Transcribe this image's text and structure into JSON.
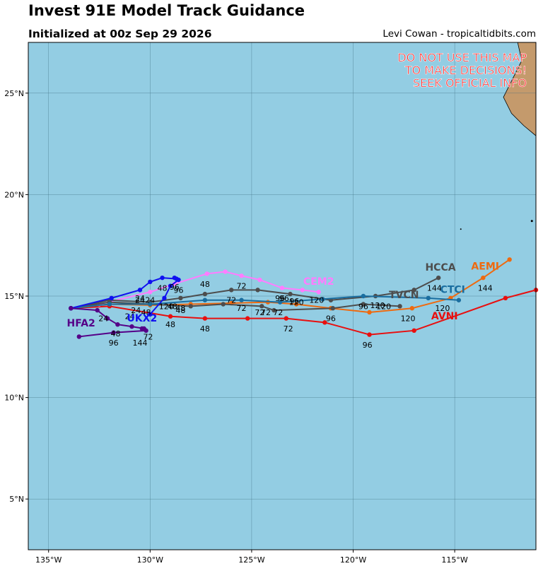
{
  "header": {
    "title": "Invest 91E Model Track Guidance",
    "initialized": "Initialized at 00z Sep 29 2026",
    "credit": "Levi Cowan - tropicaltidbits.com"
  },
  "warning": [
    "DO NOT USE THIS MAP",
    "TO MAKE DECISIONS!",
    "SEEK OFFICIAL INFO"
  ],
  "colors": {
    "ocean": "#93cde3",
    "land": "#c49a6c",
    "grid": "#3f6f80",
    "warning": "#ff1a1a"
  },
  "map_extent": {
    "lon": [
      -136,
      -111
    ],
    "lat": [
      2.5,
      27.5
    ]
  },
  "axes": {
    "lon_ticks": [
      {
        "value": -135,
        "label": "135°W"
      },
      {
        "value": -130,
        "label": "130°W"
      },
      {
        "value": -125,
        "label": "125°W"
      },
      {
        "value": -120,
        "label": "120°W"
      },
      {
        "value": -115,
        "label": "115°W"
      }
    ],
    "lat_ticks": [
      {
        "value": 25,
        "label": "25°N"
      },
      {
        "value": 20,
        "label": "20°N"
      },
      {
        "value": 15,
        "label": "15°N"
      },
      {
        "value": 10,
        "label": "10°N"
      },
      {
        "value": 5,
        "label": "5°N"
      }
    ]
  },
  "models": [
    {
      "name": "AVNI",
      "color": "#e80f0f",
      "label": {
        "text": "AVNI",
        "lon": -115.5,
        "lat": 13.85
      },
      "track": [
        [
          -133.9,
          14.4
        ],
        [
          -132,
          14.5
        ],
        [
          -129,
          14.0
        ],
        [
          -127.3,
          13.9
        ],
        [
          -125.2,
          13.9
        ],
        [
          -123.3,
          13.9
        ],
        [
          -121.4,
          13.7
        ],
        [
          -119.2,
          13.1
        ],
        [
          -117.0,
          13.3
        ],
        [
          -112.5,
          14.9
        ],
        [
          -111.0,
          15.3
        ]
      ],
      "hours": [
        {
          "t": "24",
          "lon": -132.3,
          "lat": 13.9
        },
        {
          "t": "48",
          "lon": -129.0,
          "lat": 13.6
        },
        {
          "t": "48",
          "lon": -127.3,
          "lat": 13.4
        },
        {
          "t": "72",
          "lon": -123.2,
          "lat": 13.4
        },
        {
          "t": "96",
          "lon": -119.3,
          "lat": 12.6
        }
      ]
    },
    {
      "name": "AEMI",
      "color": "#ee6a10",
      "label": {
        "text": "AEMI",
        "lon": -113.5,
        "lat": 16.3
      },
      "track": [
        [
          -133.9,
          14.4
        ],
        [
          -132,
          14.6
        ],
        [
          -130,
          14.55
        ],
        [
          -128,
          14.6
        ],
        [
          -126,
          14.65
        ],
        [
          -124.2,
          14.7
        ],
        [
          -122.8,
          14.6
        ],
        [
          -121.1,
          14.4
        ],
        [
          -119.2,
          14.2
        ],
        [
          -117.1,
          14.4
        ],
        [
          -115.2,
          14.9
        ],
        [
          -113.6,
          15.9
        ],
        [
          -112.3,
          16.8
        ]
      ],
      "hours": [
        {
          "t": "72",
          "lon": -123.7,
          "lat": 14.2
        },
        {
          "t": "96",
          "lon": -121.1,
          "lat": 13.9
        },
        {
          "t": "120",
          "lon": -117.3,
          "lat": 13.9
        },
        {
          "t": "120",
          "lon": -115.6,
          "lat": 14.4
        },
        {
          "t": "144",
          "lon": -113.5,
          "lat": 15.4
        }
      ]
    },
    {
      "name": "CEM2",
      "color": "#ff7cff",
      "label": {
        "text": "CEM2",
        "lon": -121.7,
        "lat": 15.55
      },
      "track": [
        [
          -133.9,
          14.4
        ],
        [
          -132.5,
          14.6
        ],
        [
          -130.0,
          15.2
        ],
        [
          -128.8,
          15.6
        ],
        [
          -127.2,
          16.1
        ],
        [
          -126.3,
          16.2
        ],
        [
          -125.5,
          16.0
        ],
        [
          -124.6,
          15.8
        ],
        [
          -123.5,
          15.4
        ],
        [
          -122.5,
          15.3
        ],
        [
          -121.7,
          15.2
        ]
      ],
      "hours": [
        {
          "t": "24",
          "lon": -130.5,
          "lat": 14.8
        },
        {
          "t": "48",
          "lon": -127.3,
          "lat": 15.6
        },
        {
          "t": "72",
          "lon": -125.5,
          "lat": 15.5
        },
        {
          "t": "96",
          "lon": -123.4,
          "lat": 14.9
        }
      ]
    },
    {
      "name": "HCCA",
      "color": "#4d4d4d",
      "label": {
        "text": "HCCA",
        "lon": -115.7,
        "lat": 16.25
      },
      "track": [
        [
          -133.9,
          14.4
        ],
        [
          -132,
          14.8
        ],
        [
          -130,
          14.7
        ],
        [
          -128.5,
          14.9
        ],
        [
          -127.3,
          15.1
        ],
        [
          -126,
          15.3
        ],
        [
          -124.7,
          15.3
        ],
        [
          -123.1,
          15.1
        ],
        [
          -121.1,
          14.8
        ],
        [
          -118.9,
          15.0
        ],
        [
          -117.0,
          15.3
        ],
        [
          -115.8,
          15.9
        ]
      ],
      "hours": [
        {
          "t": "48",
          "lon": -128.5,
          "lat": 14.4
        },
        {
          "t": "72",
          "lon": -125.5,
          "lat": 14.4
        },
        {
          "t": "96",
          "lon": -123.6,
          "lat": 14.9
        },
        {
          "t": "120",
          "lon": -118.5,
          "lat": 14.5
        },
        {
          "t": "144",
          "lon": -116.0,
          "lat": 15.4
        }
      ]
    },
    {
      "name": "TVCN",
      "color": "#4d4d4d",
      "label": {
        "text": "TVCN",
        "lon": -117.5,
        "lat": 14.9
      },
      "track": [
        [
          -133.9,
          14.4
        ],
        [
          -132,
          14.7
        ],
        [
          -130,
          14.6
        ],
        [
          -128,
          14.5
        ],
        [
          -126.4,
          14.6
        ],
        [
          -124.5,
          14.5
        ],
        [
          -123.9,
          14.3
        ],
        [
          -121.0,
          14.4
        ],
        [
          -119.5,
          14.6
        ],
        [
          -117.7,
          14.5
        ]
      ],
      "hours": [
        {
          "t": "48",
          "lon": -128.5,
          "lat": 14.3
        },
        {
          "t": "72",
          "lon": -124.3,
          "lat": 14.2
        },
        {
          "t": "96",
          "lon": -119.5,
          "lat": 14.5
        }
      ]
    },
    {
      "name": "CTCI",
      "color": "#1a6ea0",
      "label": {
        "text": "CTCI",
        "lon": -115.1,
        "lat": 15.15
      },
      "track": [
        [
          -133.9,
          14.4
        ],
        [
          -132,
          14.6
        ],
        [
          -130,
          14.6
        ],
        [
          -127.3,
          14.8
        ],
        [
          -125.5,
          14.8
        ],
        [
          -123.6,
          14.7
        ],
        [
          -121.5,
          14.85
        ],
        [
          -119.5,
          15.0
        ],
        [
          -116.3,
          14.9
        ],
        [
          -114.8,
          14.8
        ]
      ],
      "hours": [
        {
          "t": "72",
          "lon": -126.0,
          "lat": 14.8
        },
        {
          "t": "96",
          "lon": -122.9,
          "lat": 14.75
        },
        {
          "t": "120",
          "lon": -122.8,
          "lat": 14.7
        }
      ]
    },
    {
      "name": "UKX2",
      "color": "#1010f0",
      "label": {
        "text": "UKX2",
        "lon": -130.4,
        "lat": 13.75
      },
      "track": [
        [
          -133.9,
          14.4
        ],
        [
          -131.9,
          14.9
        ],
        [
          -130.5,
          15.3
        ],
        [
          -130.0,
          15.7
        ],
        [
          -129.4,
          15.9
        ],
        [
          -128.7,
          15.85
        ],
        [
          -128.8,
          15.9
        ],
        [
          -128.6,
          15.8
        ],
        [
          -129,
          15.5
        ],
        [
          -129.3,
          14.9
        ],
        [
          -130.0,
          14.1
        ]
      ],
      "hours": [
        {
          "t": "48",
          "lon": -129.4,
          "lat": 15.4
        },
        {
          "t": "96",
          "lon": -128.6,
          "lat": 15.3
        }
      ]
    },
    {
      "name": "HFA2",
      "color": "#550088",
      "label": {
        "text": "HFA2",
        "lon": -133.4,
        "lat": 13.5
      },
      "track": [
        [
          -133.9,
          14.4
        ],
        [
          -132.6,
          14.3
        ],
        [
          -132.1,
          13.9
        ],
        [
          -131.6,
          13.6
        ],
        [
          -130.9,
          13.5
        ],
        [
          -130.3,
          13.4
        ],
        [
          -130.4,
          13.4
        ],
        [
          -130.2,
          13.3
        ],
        [
          -131.8,
          13.2
        ],
        [
          -133.5,
          13.0
        ]
      ],
      "hours": [
        {
          "t": "24",
          "lon": -131.0,
          "lat": 14.0
        },
        {
          "t": "48",
          "lon": -131.7,
          "lat": 13.15
        },
        {
          "t": "96",
          "lon": -131.8,
          "lat": 12.7
        },
        {
          "t": "72",
          "lon": -130.1,
          "lat": 13.0
        },
        {
          "t": "144",
          "lon": -130.5,
          "lat": 12.7
        }
      ]
    }
  ],
  "extra_hour_labels": [
    {
      "t": "24",
      "lon": -130.5,
      "lat": 14.9
    },
    {
      "t": "24",
      "lon": -130.0,
      "lat": 14.8
    },
    {
      "t": "96",
      "lon": -128.8,
      "lat": 15.45
    },
    {
      "t": "120",
      "lon": -129.2,
      "lat": 14.5
    },
    {
      "t": "48",
      "lon": -128.9,
      "lat": 14.5
    },
    {
      "t": "72",
      "lon": -124.6,
      "lat": 14.2
    },
    {
      "t": "120",
      "lon": -121.8,
      "lat": 14.8
    },
    {
      "t": "120",
      "lon": -118.8,
      "lat": 14.55
    },
    {
      "t": "48",
      "lon": -130.2,
      "lat": 14.2
    },
    {
      "t": "24",
      "lon": -130.7,
      "lat": 14.3
    }
  ]
}
